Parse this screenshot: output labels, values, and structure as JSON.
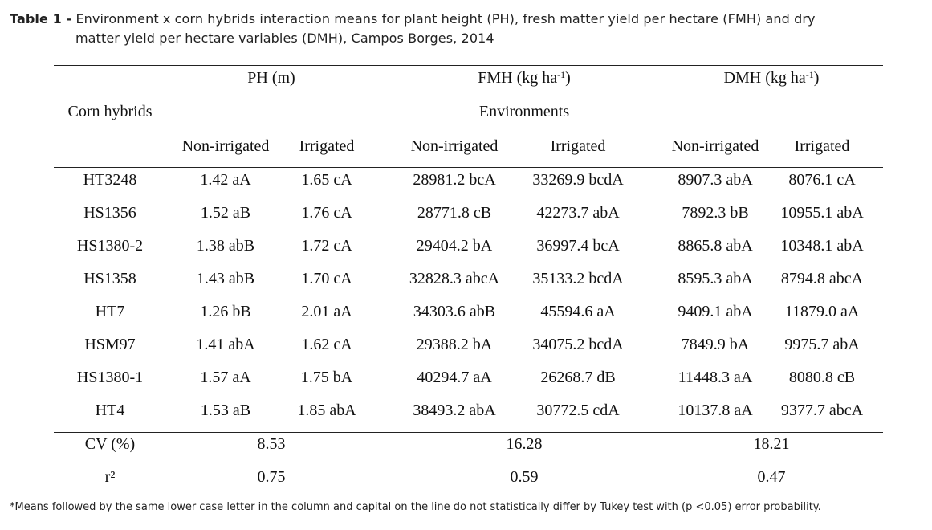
{
  "caption": {
    "label": "Table 1 -",
    "line1": "Environment x corn hybrids interaction means for plant height (PH), fresh matter yield per hectare (FMH) and dry",
    "line2": "matter yield per hectare variables (DMH), Campos Borges, 2014"
  },
  "header": {
    "row_label": "Corn hybrids",
    "groups": [
      {
        "name": "PH (m)",
        "base": "PH (m)",
        "sup": ""
      },
      {
        "name": "FMH (kg ha-1)",
        "base": "FMH (kg ha",
        "sup": "-1",
        "close": ")"
      },
      {
        "name": "DMH (kg ha-1)",
        "base": "DMH (kg ha",
        "sup": "-1",
        "close": ")"
      }
    ],
    "environments": "Environments",
    "sub": [
      "Non-irrigated",
      "Irrigated",
      "Non-irrigated",
      "Irrigated",
      "Non-irrigated",
      "Irrigated"
    ]
  },
  "rows": [
    {
      "name": "HT3248",
      "values": [
        "1.42 aA",
        "1.65 cA",
        "28981.2 bcA",
        "33269.9 bcdA",
        "8907.3 abA",
        "8076.1 cA"
      ]
    },
    {
      "name": "HS1356",
      "values": [
        "1.52 aB",
        "1.76 cA",
        "28771.8 cB",
        "42273.7 abA",
        "7892.3 bB",
        "10955.1 abA"
      ]
    },
    {
      "name": "HS1380-2",
      "values": [
        "1.38 abB",
        "1.72 cA",
        "29404.2 bA",
        "36997.4 bcA",
        "8865.8 abA",
        "10348.1 abA"
      ]
    },
    {
      "name": "HS1358",
      "values": [
        "1.43 abB",
        "1.70 cA",
        "32828.3 abcA",
        "35133.2 bcdA",
        "8595.3 abA",
        "8794.8 abcA"
      ]
    },
    {
      "name": "HT7",
      "values": [
        "1.26 bB",
        "2.01 aA",
        "34303.6 abB",
        "45594.6 aA",
        "9409.1 abA",
        "11879.0 aA"
      ]
    },
    {
      "name": "HSM97",
      "values": [
        "1.41 abA",
        "1.62 cA",
        "29388.2 bA",
        "34075.2 bcdA",
        "7849.9 bA",
        "9975.7 abA"
      ]
    },
    {
      "name": "HS1380-1",
      "values": [
        "1.57 aA",
        "1.75 bA",
        "40294.7 aA",
        "26268.7 dB",
        "11448.3 aA",
        "8080.8 cB"
      ]
    },
    {
      "name": "HT4",
      "values": [
        "1.53 aB",
        "1.85 abA",
        "38493.2 abA",
        "30772.5 cdA",
        "10137.8 aA",
        "9377.7 abcA"
      ]
    }
  ],
  "cv": {
    "label": "CV (%)",
    "values": [
      "8.53",
      "16.28",
      "18.21"
    ]
  },
  "r2": {
    "label": "r²",
    "values": [
      "0.75",
      "0.59",
      "0.47"
    ]
  },
  "footnote": "*Means followed by the same lower case letter in the column and capital on the line do not statistically differ by Tukey test with (p <0.05) error probability."
}
